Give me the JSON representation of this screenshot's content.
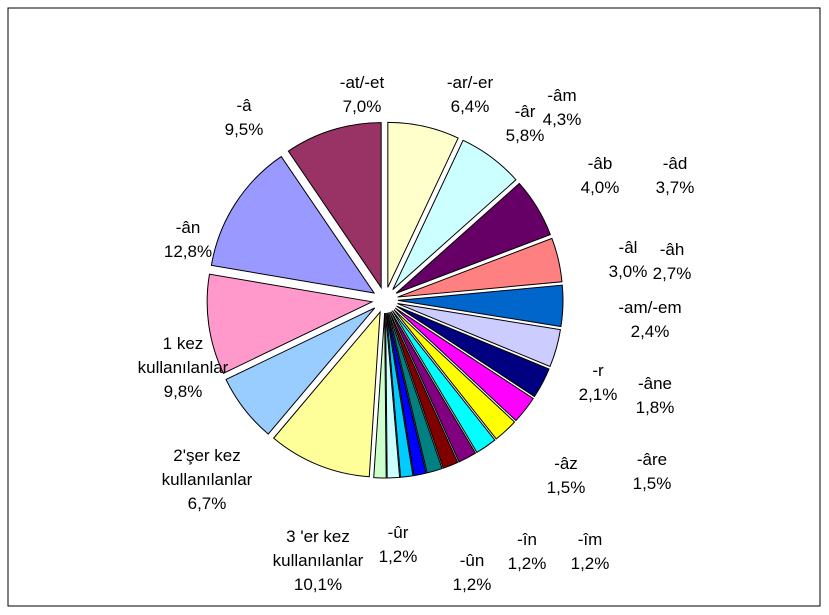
{
  "chart_data": {
    "type": "pie",
    "categories": [
      "-at/-et",
      "-ar/-er",
      "-âr",
      "-âm",
      "-âb",
      "-âd",
      "-âl",
      "-âh",
      "-am/-em",
      "-r",
      "-âne",
      "-âre",
      "-âz",
      "-îm",
      "-în",
      "-ûn",
      "-ûr",
      "3 'er kez kullanılanlar",
      "2'şer kez kullanılanlar",
      "1 kez kullanılanlar",
      "-ân",
      "-â"
    ],
    "values": [
      7.0,
      6.4,
      5.8,
      4.3,
      4.0,
      3.7,
      3.0,
      2.7,
      2.4,
      2.1,
      1.8,
      1.5,
      1.5,
      1.2,
      1.2,
      1.2,
      1.2,
      10.1,
      6.7,
      9.8,
      12.8,
      9.5
    ],
    "value_labels": [
      "7,0%",
      "6,4%",
      "5,8%",
      "4,3%",
      "4,0%",
      "3,7%",
      "3,0%",
      "2,7%",
      "2,4%",
      "2,1%",
      "1,8%",
      "1,5%",
      "1,5%",
      "1,2%",
      "1,2%",
      "1,2%",
      "1,2%",
      "10,1%",
      "6,7%",
      "9,8%",
      "12,8%",
      "9,5%"
    ],
    "colors": [
      "#FFFFCC",
      "#CCFFFF",
      "#660066",
      "#FF8080",
      "#0066CC",
      "#CCCCFF",
      "#000080",
      "#FF00FF",
      "#FFFF00",
      "#00FFFF",
      "#800080",
      "#800000",
      "#008080",
      "#0000FF",
      "#00CCFF",
      "#CCFFFF",
      "#CCFFCC",
      "#FFFF99",
      "#99CCFF",
      "#FF99CC",
      "#9999FF",
      "#993366"
    ]
  }
}
